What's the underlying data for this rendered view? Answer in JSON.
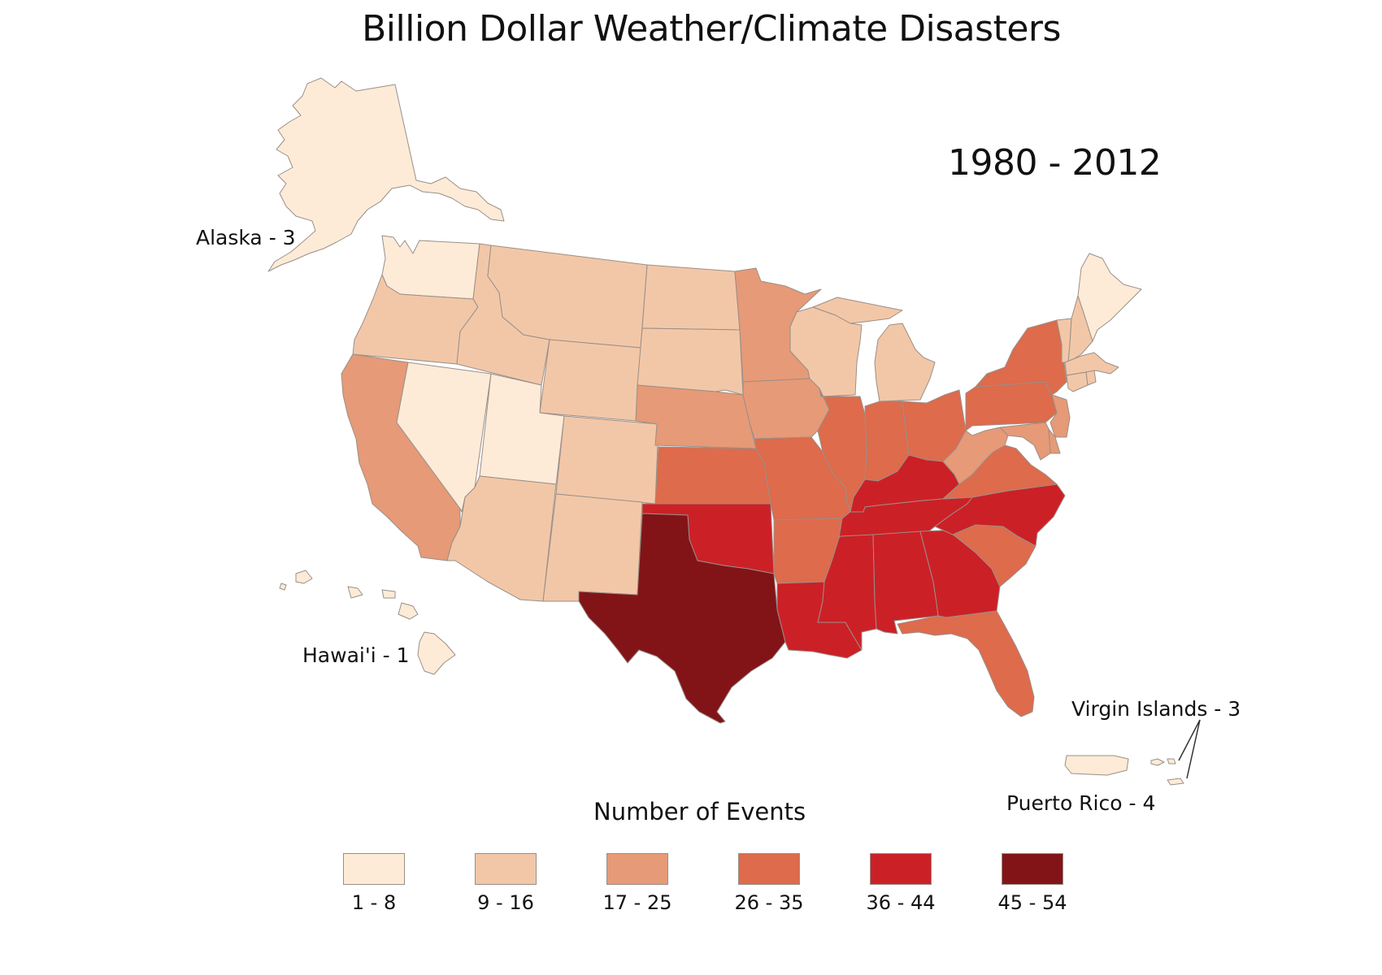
{
  "title": "Billion Dollar Weather/Climate Disasters",
  "period": "1980 - 2012",
  "colors": {
    "1-8": "#fdebd7",
    "9-16": "#f2c7a8",
    "17-25": "#e69a77",
    "26-35": "#dd6b4c",
    "36-44": "#cc2027",
    "45-54": "#821418",
    "border": "#9a8f88"
  },
  "callouts": {
    "alaska": "Alaska - 3",
    "hawaii": "Hawai'i - 1",
    "virgin_islands": "Virgin Islands - 3",
    "puerto_rico": "Puerto Rico - 4"
  },
  "legend": {
    "title": "Number of Events",
    "bins": [
      {
        "label": "1 - 8",
        "color": "#fdebd7"
      },
      {
        "label": "9 - 16",
        "color": "#f2c7a8"
      },
      {
        "label": "17 - 25",
        "color": "#e69a77"
      },
      {
        "label": "26 - 35",
        "color": "#dd6b4c"
      },
      {
        "label": "36 - 44",
        "color": "#cc2027"
      },
      {
        "label": "45 - 54",
        "color": "#821418"
      }
    ]
  },
  "states": {
    "WA": "1-8",
    "OR": "9-16",
    "CA": "17-25",
    "NV": "1-8",
    "ID": "9-16",
    "MT": "9-16",
    "WY": "9-16",
    "UT": "1-8",
    "AZ": "9-16",
    "CO": "9-16",
    "NM": "9-16",
    "ND": "9-16",
    "SD": "9-16",
    "NE": "17-25",
    "KS": "26-35",
    "OK": "36-44",
    "TX": "45-54",
    "MN": "17-25",
    "IA": "17-25",
    "MO": "26-35",
    "AR": "26-35",
    "LA": "36-44",
    "WI": "9-16",
    "IL": "26-35",
    "MI": "9-16",
    "IN": "26-35",
    "OH": "26-35",
    "KY": "36-44",
    "TN": "36-44",
    "MS": "36-44",
    "AL": "36-44",
    "GA": "36-44",
    "FL": "26-35",
    "SC": "26-35",
    "NC": "36-44",
    "VA": "26-35",
    "WV": "17-25",
    "PA": "26-35",
    "NY": "26-35",
    "ME": "1-8",
    "NH": "9-16",
    "VT": "9-16",
    "MA": "9-16",
    "CT": "9-16",
    "RI": "9-16",
    "NJ": "17-25",
    "DE": "17-25",
    "MD": "17-25",
    "AK": "1-8",
    "HI": "1-8",
    "PR": "1-8",
    "VI": "1-8"
  }
}
